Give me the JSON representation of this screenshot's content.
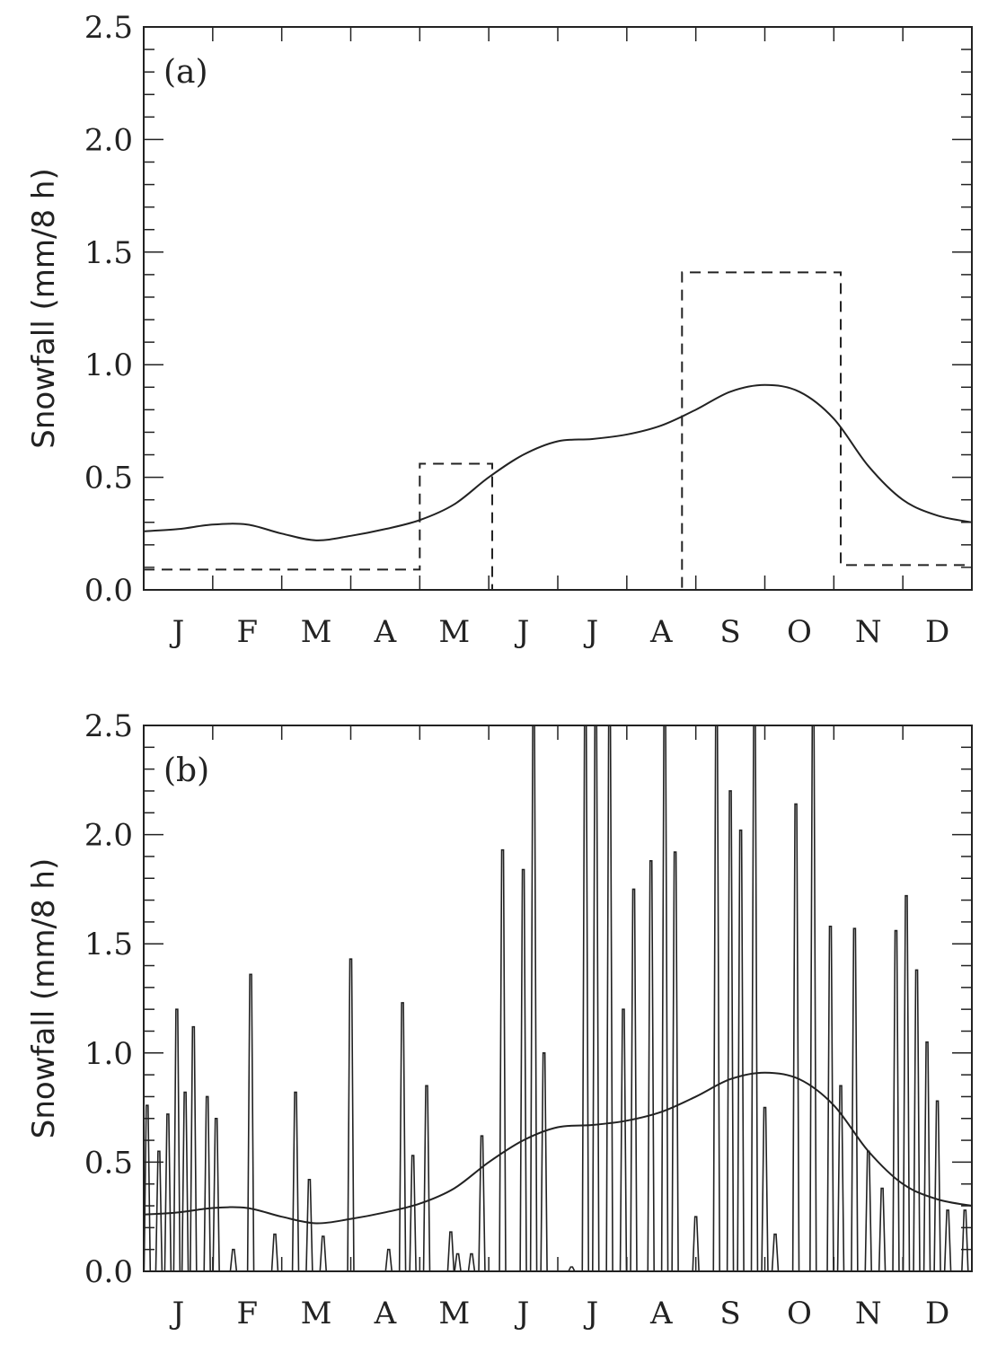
{
  "chart_data": [
    {
      "type": "line",
      "panel_label": "(a)",
      "ylabel": "Snowfall (mm/8 h)",
      "ylim": [
        0,
        2.5
      ],
      "yticks": [
        "0.0",
        "0.5",
        "1.0",
        "1.5",
        "2.0",
        "2.5"
      ],
      "x_range": [
        0,
        12
      ],
      "categories": [
        "J",
        "F",
        "M",
        "A",
        "M",
        "J",
        "J",
        "A",
        "S",
        "O",
        "N",
        "D"
      ],
      "series": [
        {
          "style": "solid",
          "x": [
            0,
            0.5,
            1.0,
            1.5,
            2.0,
            2.5,
            3.0,
            3.5,
            4.0,
            4.5,
            5.0,
            5.5,
            6.0,
            6.5,
            7.0,
            7.5,
            8.0,
            8.5,
            9.0,
            9.5,
            10.0,
            10.5,
            11.0,
            11.5,
            12.0
          ],
          "values": [
            0.26,
            0.27,
            0.29,
            0.29,
            0.25,
            0.22,
            0.24,
            0.27,
            0.31,
            0.38,
            0.5,
            0.6,
            0.66,
            0.67,
            0.69,
            0.73,
            0.8,
            0.88,
            0.91,
            0.88,
            0.76,
            0.55,
            0.4,
            0.33,
            0.3
          ]
        },
        {
          "style": "dashed",
          "x": [
            0,
            4.0,
            4.0,
            5.05,
            5.05,
            7.8,
            7.8,
            10.1,
            10.1,
            12
          ],
          "values": [
            0.09,
            0.09,
            0.56,
            0.56,
            0.0,
            0.0,
            1.41,
            1.41,
            0.11,
            0.11
          ]
        }
      ]
    },
    {
      "type": "line",
      "panel_label": "(b)",
      "ylabel": "Snowfall (mm/8 h)",
      "ylim": [
        0,
        2.5
      ],
      "yticks": [
        "0.0",
        "0.5",
        "1.0",
        "1.5",
        "2.0",
        "2.5"
      ],
      "x_range": [
        0,
        12
      ],
      "categories": [
        "J",
        "F",
        "M",
        "A",
        "M",
        "J",
        "J",
        "A",
        "S",
        "O",
        "N",
        "D"
      ],
      "series": [
        {
          "style": "solid",
          "x": [
            0,
            0.5,
            1.0,
            1.5,
            2.0,
            2.5,
            3.0,
            3.5,
            4.0,
            4.5,
            5.0,
            5.5,
            6.0,
            6.5,
            7.0,
            7.5,
            8.0,
            8.5,
            9.0,
            9.5,
            10.0,
            10.5,
            11.0,
            11.5,
            12.0
          ],
          "values": [
            0.26,
            0.27,
            0.29,
            0.29,
            0.25,
            0.22,
            0.24,
            0.27,
            0.31,
            0.38,
            0.5,
            0.6,
            0.66,
            0.67,
            0.69,
            0.73,
            0.8,
            0.88,
            0.91,
            0.88,
            0.76,
            0.55,
            0.4,
            0.33,
            0.3
          ]
        },
        {
          "style": "spikes",
          "events": [
            [
              0.05,
              0.76
            ],
            [
              0.22,
              0.55
            ],
            [
              0.35,
              0.72
            ],
            [
              0.48,
              1.2
            ],
            [
              0.6,
              0.82
            ],
            [
              0.72,
              1.12
            ],
            [
              0.92,
              0.8
            ],
            [
              1.05,
              0.7
            ],
            [
              1.3,
              0.1
            ],
            [
              1.55,
              1.36
            ],
            [
              1.9,
              0.17
            ],
            [
              2.2,
              0.82
            ],
            [
              2.4,
              0.42
            ],
            [
              2.6,
              0.16
            ],
            [
              3.0,
              1.43
            ],
            [
              3.55,
              0.1
            ],
            [
              3.75,
              1.23
            ],
            [
              3.9,
              0.53
            ],
            [
              4.1,
              0.85
            ],
            [
              4.45,
              0.18
            ],
            [
              4.55,
              0.08
            ],
            [
              4.75,
              0.08
            ],
            [
              4.9,
              0.62
            ],
            [
              5.2,
              1.93
            ],
            [
              5.5,
              1.84
            ],
            [
              5.65,
              2.5
            ],
            [
              5.8,
              1.0
            ],
            [
              6.2,
              0.02
            ],
            [
              6.4,
              2.5
            ],
            [
              6.55,
              2.5
            ],
            [
              6.75,
              2.5
            ],
            [
              6.95,
              1.2
            ],
            [
              7.1,
              1.75
            ],
            [
              7.35,
              1.88
            ],
            [
              7.55,
              2.5
            ],
            [
              7.7,
              1.92
            ],
            [
              8.0,
              0.25
            ],
            [
              8.3,
              2.5
            ],
            [
              8.5,
              2.2
            ],
            [
              8.65,
              2.02
            ],
            [
              8.85,
              2.5
            ],
            [
              9.0,
              0.75
            ],
            [
              9.15,
              0.17
            ],
            [
              9.45,
              2.14
            ],
            [
              9.7,
              2.5
            ],
            [
              9.95,
              1.58
            ],
            [
              10.1,
              0.85
            ],
            [
              10.3,
              1.57
            ],
            [
              10.5,
              0.55
            ],
            [
              10.7,
              0.38
            ],
            [
              10.9,
              1.56
            ],
            [
              11.05,
              1.72
            ],
            [
              11.2,
              1.38
            ],
            [
              11.35,
              1.05
            ],
            [
              11.5,
              0.78
            ],
            [
              11.65,
              0.28
            ],
            [
              11.9,
              0.28
            ]
          ]
        }
      ]
    }
  ]
}
